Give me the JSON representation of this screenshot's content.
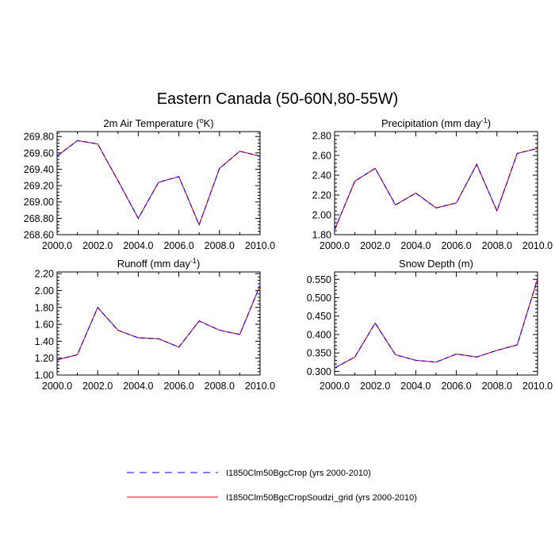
{
  "figure": {
    "title": "Eastern Canada (50-60N,80-55W)"
  },
  "legend": {
    "placement": "bottom-center",
    "entries": [
      {
        "label": "I1850Clm50BgcCrop (yrs 2000-2010)",
        "color": "#0000ff",
        "dash": "dashed"
      },
      {
        "label": "I1850Clm50BgcCropSoudzi_grid (yrs 2000-2010)",
        "color": "#ff0000",
        "dash": "solid"
      }
    ]
  },
  "colors": {
    "series_a": "#0000ff",
    "series_b": "#ff0000"
  },
  "chart_data": [
    {
      "type": "line",
      "title": "2m Air Temperature (",
      "title_sup": "o",
      "title_after": "K)",
      "x": [
        2000,
        2001,
        2002,
        2003,
        2004,
        2005,
        2006,
        2007,
        2008,
        2009,
        2010
      ],
      "xlim": [
        2000,
        2010
      ],
      "ylim": [
        268.6,
        269.86
      ],
      "xticks": [
        "2000.0",
        "2002.0",
        "2004.0",
        "2006.0",
        "2008.0",
        "2010.0"
      ],
      "xtick_values": [
        2000,
        2002,
        2004,
        2006,
        2008,
        2010
      ],
      "yticks": [
        "268.60",
        "268.80",
        "269.00",
        "269.20",
        "269.40",
        "269.60",
        "269.80"
      ],
      "ytick_values": [
        268.6,
        268.8,
        269.0,
        269.2,
        269.4,
        269.6,
        269.8
      ],
      "series": [
        {
          "values": [
            269.56,
            269.75,
            269.71,
            269.26,
            268.8,
            269.24,
            269.31,
            268.72,
            269.41,
            269.62,
            269.56
          ]
        },
        {
          "values": [
            269.56,
            269.75,
            269.71,
            269.26,
            268.8,
            269.24,
            269.31,
            268.72,
            269.41,
            269.62,
            269.56
          ]
        }
      ]
    },
    {
      "type": "line",
      "title": "Precipitation (mm day",
      "title_sup": "-1",
      "title_after": ")",
      "x": [
        2000,
        2001,
        2002,
        2003,
        2004,
        2005,
        2006,
        2007,
        2008,
        2009,
        2010
      ],
      "xlim": [
        2000,
        2010
      ],
      "ylim": [
        1.8,
        2.84
      ],
      "xticks": [
        "2000.0",
        "2002.0",
        "2004.0",
        "2006.0",
        "2008.0",
        "2010.0"
      ],
      "xtick_values": [
        2000,
        2002,
        2004,
        2006,
        2008,
        2010
      ],
      "yticks": [
        "1.80",
        "2.00",
        "2.20",
        "2.40",
        "2.60",
        "2.80"
      ],
      "ytick_values": [
        1.8,
        2.0,
        2.2,
        2.4,
        2.6,
        2.8
      ],
      "series": [
        {
          "values": [
            1.85,
            2.34,
            2.47,
            2.1,
            2.22,
            2.07,
            2.12,
            2.51,
            2.04,
            2.62,
            2.67
          ]
        },
        {
          "values": [
            1.85,
            2.34,
            2.47,
            2.1,
            2.22,
            2.07,
            2.12,
            2.51,
            2.04,
            2.62,
            2.67
          ]
        }
      ]
    },
    {
      "type": "line",
      "title": "Runoff (mm day",
      "title_sup": "-1",
      "title_after": ")",
      "x": [
        2000,
        2001,
        2002,
        2003,
        2004,
        2005,
        2006,
        2007,
        2008,
        2009,
        2010
      ],
      "xlim": [
        2000,
        2010
      ],
      "ylim": [
        1.0,
        2.22
      ],
      "xticks": [
        "2000.0",
        "2002.0",
        "2004.0",
        "2006.0",
        "2008.0",
        "2010.0"
      ],
      "xtick_values": [
        2000,
        2002,
        2004,
        2006,
        2008,
        2010
      ],
      "yticks": [
        "1.00",
        "1.20",
        "1.40",
        "1.60",
        "1.80",
        "2.00",
        "2.20"
      ],
      "ytick_values": [
        1.0,
        1.2,
        1.4,
        1.6,
        1.8,
        2.0,
        2.2
      ],
      "series": [
        {
          "values": [
            1.18,
            1.24,
            1.8,
            1.53,
            1.44,
            1.43,
            1.33,
            1.64,
            1.53,
            1.48,
            2.06
          ]
        },
        {
          "values": [
            1.18,
            1.24,
            1.8,
            1.53,
            1.44,
            1.43,
            1.33,
            1.64,
            1.53,
            1.48,
            2.06
          ]
        }
      ]
    },
    {
      "type": "line",
      "title": "Snow Depth (m)",
      "title_sup": "",
      "title_after": "",
      "x": [
        2000,
        2001,
        2002,
        2003,
        2004,
        2005,
        2006,
        2007,
        2008,
        2009,
        2010
      ],
      "xlim": [
        2000,
        2010
      ],
      "ylim": [
        0.29,
        0.57
      ],
      "xticks": [
        "2000.0",
        "2002.0",
        "2004.0",
        "2006.0",
        "2008.0",
        "2010.0"
      ],
      "xtick_values": [
        2000,
        2002,
        2004,
        2006,
        2008,
        2010
      ],
      "yticks": [
        "0.300",
        "0.350",
        "0.400",
        "0.450",
        "0.500",
        "0.550"
      ],
      "ytick_values": [
        0.3,
        0.35,
        0.4,
        0.45,
        0.5,
        0.55
      ],
      "series": [
        {
          "values": [
            0.309,
            0.339,
            0.431,
            0.345,
            0.33,
            0.325,
            0.347,
            0.339,
            0.357,
            0.372,
            0.551
          ]
        },
        {
          "values": [
            0.309,
            0.339,
            0.431,
            0.345,
            0.33,
            0.325,
            0.347,
            0.339,
            0.357,
            0.372,
            0.551
          ]
        }
      ]
    }
  ]
}
